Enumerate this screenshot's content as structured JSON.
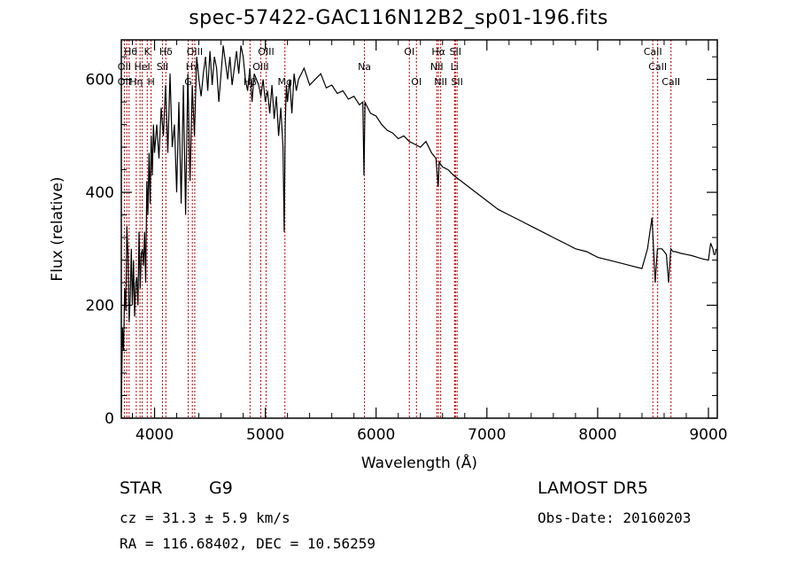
{
  "title": "spec-57422-GAC116N12B2_sp01-196.fits",
  "footer": {
    "object_class": "STAR",
    "subclass": "G9",
    "survey": "LAMOST  DR5",
    "cz": "cz = 31.3 ± 5.9 km/s",
    "obs_date": "Obs-Date: 20160203",
    "coords": "RA = 116.68402, DEC =  10.56259"
  },
  "chart_data": {
    "type": "line",
    "xlabel": "Wavelength (Å)",
    "ylabel": "Flux (relative)",
    "xlim": [
      3700,
      9080
    ],
    "ylim": [
      0,
      670
    ],
    "xticks": [
      4000,
      5000,
      6000,
      7000,
      8000,
      9000
    ],
    "yticks": [
      0,
      200,
      400,
      600
    ],
    "line_color": "#000000",
    "marker_color": "#b00000",
    "series": [
      {
        "x": [
          3700,
          3710,
          3720,
          3730,
          3740,
          3750,
          3760,
          3770,
          3780,
          3790,
          3800,
          3810,
          3820,
          3830,
          3840,
          3850,
          3860,
          3870,
          3880,
          3890,
          3900,
          3910,
          3920,
          3930,
          3940,
          3950,
          3960,
          3970,
          3980,
          3990,
          4000,
          4020,
          4040,
          4060,
          4080,
          4100,
          4120,
          4140,
          4160,
          4180,
          4200,
          4220,
          4240,
          4260,
          4280,
          4300,
          4320,
          4340,
          4360,
          4380,
          4400,
          4420,
          4440,
          4460,
          4480,
          4500,
          4520,
          4540,
          4560,
          4580,
          4600,
          4620,
          4640,
          4660,
          4680,
          4700,
          4720,
          4740,
          4760,
          4780,
          4800,
          4820,
          4840,
          4860,
          4880,
          4900,
          4920,
          4940,
          4960,
          4980,
          5000,
          5020,
          5040,
          5060,
          5080,
          5100,
          5120,
          5140,
          5160,
          5170,
          5180,
          5190,
          5200,
          5220,
          5240,
          5260,
          5280,
          5300,
          5350,
          5400,
          5450,
          5500,
          5550,
          5600,
          5650,
          5700,
          5750,
          5800,
          5850,
          5880,
          5890,
          5900,
          5910,
          5950,
          6000,
          6050,
          6100,
          6150,
          6200,
          6250,
          6300,
          6350,
          6400,
          6450,
          6500,
          6540,
          6560,
          6570,
          6580,
          6600,
          6650,
          6700,
          6800,
          6900,
          7000,
          7100,
          7200,
          7300,
          7400,
          7500,
          7600,
          7700,
          7800,
          7900,
          8000,
          8100,
          8200,
          8300,
          8400,
          8450,
          8490,
          8500,
          8520,
          8540,
          8560,
          8580,
          8600,
          8620,
          8640,
          8660,
          8680,
          8700,
          8750,
          8800,
          8850,
          8900,
          8950,
          9000,
          9020,
          9040,
          9050,
          9060,
          9070
        ],
        "y": [
          10,
          160,
          120,
          230,
          190,
          340,
          290,
          170,
          210,
          300,
          200,
          280,
          180,
          240,
          250,
          200,
          330,
          230,
          290,
          300,
          270,
          330,
          240,
          420,
          360,
          470,
          380,
          500,
          430,
          520,
          470,
          520,
          460,
          550,
          500,
          590,
          470,
          610,
          480,
          520,
          400,
          560,
          380,
          590,
          360,
          610,
          420,
          590,
          500,
          640,
          600,
          570,
          610,
          640,
          580,
          650,
          590,
          640,
          620,
          560,
          610,
          660,
          630,
          600,
          640,
          590,
          620,
          650,
          610,
          660,
          640,
          600,
          580,
          620,
          560,
          610,
          600,
          590,
          570,
          600,
          560,
          580,
          540,
          590,
          530,
          570,
          500,
          550,
          480,
          330,
          520,
          590,
          560,
          600,
          540,
          610,
          580,
          600,
          620,
          590,
          600,
          610,
          585,
          590,
          575,
          580,
          565,
          570,
          555,
          560,
          430,
          560,
          555,
          540,
          535,
          520,
          510,
          505,
          495,
          500,
          490,
          485,
          480,
          490,
          470,
          460,
          410,
          455,
          450,
          445,
          440,
          430,
          415,
          400,
          385,
          370,
          360,
          350,
          340,
          330,
          320,
          310,
          300,
          295,
          285,
          280,
          275,
          270,
          265,
          300,
          355,
          320,
          240,
          300,
          300,
          300,
          295,
          290,
          240,
          300,
          295,
          295,
          292,
          290,
          288,
          285,
          282,
          280,
          310,
          300,
          290,
          290,
          300
        ]
      }
    ],
    "line_markers": [
      {
        "x": 3727,
        "label": ""
      },
      {
        "x": 3750,
        "label": ""
      },
      {
        "x": 3770,
        "label": ""
      },
      {
        "x": 3835,
        "label": ""
      },
      {
        "x": 3869,
        "label": ""
      },
      {
        "x": 3889,
        "label": ""
      },
      {
        "x": 3934,
        "label": ""
      },
      {
        "x": 3969,
        "label": ""
      },
      {
        "x": 4072,
        "label": ""
      },
      {
        "x": 4102,
        "label": ""
      },
      {
        "x": 4304,
        "label": ""
      },
      {
        "x": 4341,
        "label": ""
      },
      {
        "x": 4363,
        "label": ""
      },
      {
        "x": 4862,
        "label": ""
      },
      {
        "x": 4959,
        "label": ""
      },
      {
        "x": 5007,
        "label": ""
      },
      {
        "x": 5177,
        "label": ""
      },
      {
        "x": 5895,
        "label": ""
      },
      {
        "x": 6300,
        "label": ""
      },
      {
        "x": 6364,
        "label": ""
      },
      {
        "x": 6548,
        "label": ""
      },
      {
        "x": 6563,
        "label": ""
      },
      {
        "x": 6583,
        "label": ""
      },
      {
        "x": 6708,
        "label": ""
      },
      {
        "x": 6716,
        "label": ""
      },
      {
        "x": 6731,
        "label": ""
      },
      {
        "x": 8498,
        "label": ""
      },
      {
        "x": 8542,
        "label": ""
      },
      {
        "x": 8662,
        "label": ""
      }
    ],
    "line_labels": [
      {
        "text": "Hθ",
        "x": 3785,
        "row": 0
      },
      {
        "text": "K",
        "x": 3934,
        "row": 0
      },
      {
        "text": "Hδ",
        "x": 4102,
        "row": 0
      },
      {
        "text": "OIII",
        "x": 4363,
        "row": 0
      },
      {
        "text": "OIII",
        "x": 5007,
        "row": 0
      },
      {
        "text": "OI",
        "x": 6300,
        "row": 0
      },
      {
        "text": "Hα",
        "x": 6563,
        "row": 0
      },
      {
        "text": "SII",
        "x": 6716,
        "row": 0
      },
      {
        "text": "CaII",
        "x": 8498,
        "row": 0
      },
      {
        "text": "OII",
        "x": 3727,
        "row": 1
      },
      {
        "text": "HeI",
        "x": 3889,
        "row": 1
      },
      {
        "text": "SII",
        "x": 4072,
        "row": 1
      },
      {
        "text": "Hγ",
        "x": 4341,
        "row": 1
      },
      {
        "text": "OIII",
        "x": 4959,
        "row": 1
      },
      {
        "text": "Na",
        "x": 5895,
        "row": 1
      },
      {
        "text": "NII",
        "x": 6548,
        "row": 1
      },
      {
        "text": "Li",
        "x": 6708,
        "row": 1
      },
      {
        "text": "CaII",
        "x": 8542,
        "row": 1
      },
      {
        "text": "OII",
        "x": 3727,
        "row": 2
      },
      {
        "text": "Hη",
        "x": 3835,
        "row": 2
      },
      {
        "text": "H",
        "x": 3969,
        "row": 2
      },
      {
        "text": "G",
        "x": 4304,
        "row": 2
      },
      {
        "text": "Hβ",
        "x": 4862,
        "row": 2
      },
      {
        "text": "Mg",
        "x": 5177,
        "row": 2
      },
      {
        "text": "OI",
        "x": 6364,
        "row": 2
      },
      {
        "text": "NII",
        "x": 6583,
        "row": 2
      },
      {
        "text": "SII",
        "x": 6731,
        "row": 2
      },
      {
        "text": "CaII",
        "x": 8662,
        "row": 2
      }
    ]
  }
}
